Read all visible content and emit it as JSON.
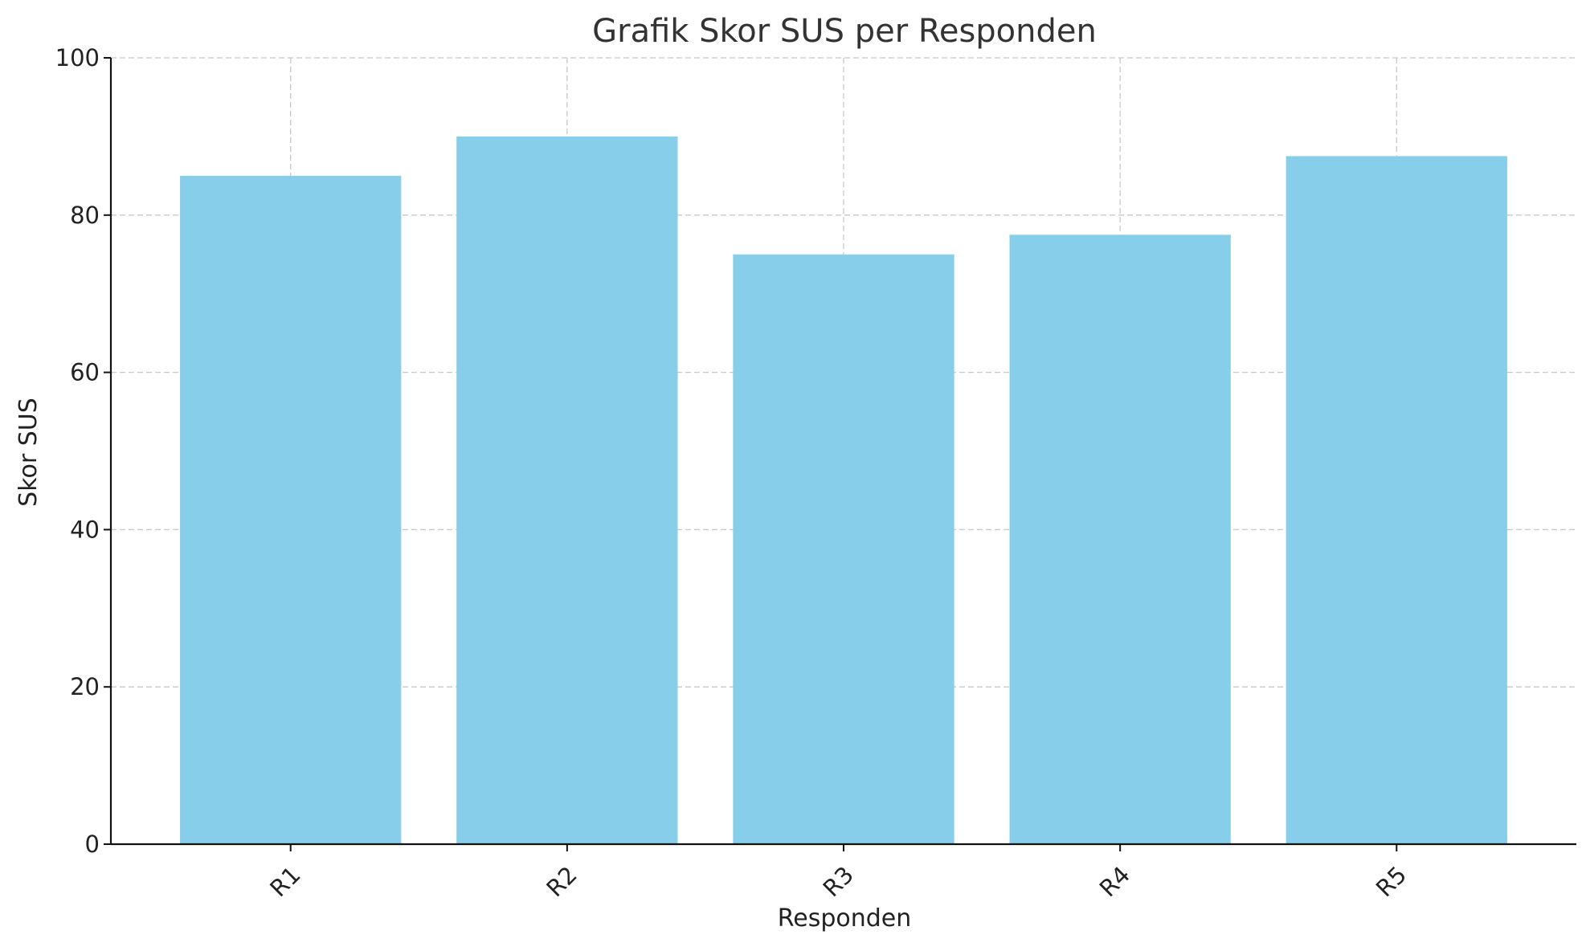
{
  "chart_data": {
    "type": "bar",
    "title": "Grafik Skor SUS per Responden",
    "xlabel": "Responden",
    "ylabel": "Skor SUS",
    "categories": [
      "R1",
      "R2",
      "R3",
      "R4",
      "R5"
    ],
    "values": [
      85,
      90,
      75,
      77.5,
      87.5
    ],
    "ylim": [
      0,
      100
    ],
    "yticks": [
      0,
      20,
      40,
      60,
      80,
      100
    ],
    "grid": true,
    "bar_color": "#87CEEB",
    "legend": false
  }
}
